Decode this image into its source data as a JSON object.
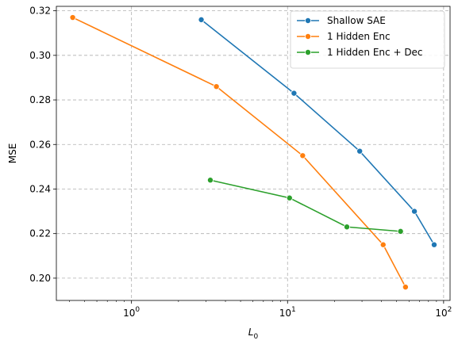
{
  "chart_data": {
    "type": "line",
    "xlabel": "L",
    "xlabel_sub": "0",
    "ylabel": "MSE",
    "xscale": "log",
    "xlim": [
      0.33,
      110
    ],
    "ylim": [
      0.19,
      0.322
    ],
    "grid": true,
    "legend_position": "upper-right",
    "x_ticks": [
      {
        "value": 1,
        "base": "10",
        "exp": "0"
      },
      {
        "value": 10,
        "base": "10",
        "exp": "1"
      },
      {
        "value": 100,
        "base": "10",
        "exp": "2"
      }
    ],
    "y_ticks": [
      {
        "value": 0.2,
        "label": "0.20"
      },
      {
        "value": 0.22,
        "label": "0.22"
      },
      {
        "value": 0.24,
        "label": "0.24"
      },
      {
        "value": 0.26,
        "label": "0.26"
      },
      {
        "value": 0.28,
        "label": "0.28"
      },
      {
        "value": 0.3,
        "label": "0.30"
      },
      {
        "value": 0.32,
        "label": "0.32"
      }
    ],
    "series": [
      {
        "name": "Shallow SAE",
        "color": "#1f77b4",
        "x": [
          2.8,
          11.0,
          29.0,
          65.0,
          87.0
        ],
        "y": [
          0.316,
          0.283,
          0.257,
          0.23,
          0.215
        ]
      },
      {
        "name": "1 Hidden Enc",
        "color": "#ff7f0e",
        "x": [
          0.42,
          3.5,
          12.5,
          41.0,
          57.0
        ],
        "y": [
          0.317,
          0.286,
          0.255,
          0.215,
          0.196
        ]
      },
      {
        "name": "1 Hidden Enc + Dec",
        "color": "#2ca02c",
        "x": [
          3.2,
          10.3,
          24.0,
          53.0
        ],
        "y": [
          0.244,
          0.236,
          0.223,
          0.221
        ]
      }
    ]
  }
}
